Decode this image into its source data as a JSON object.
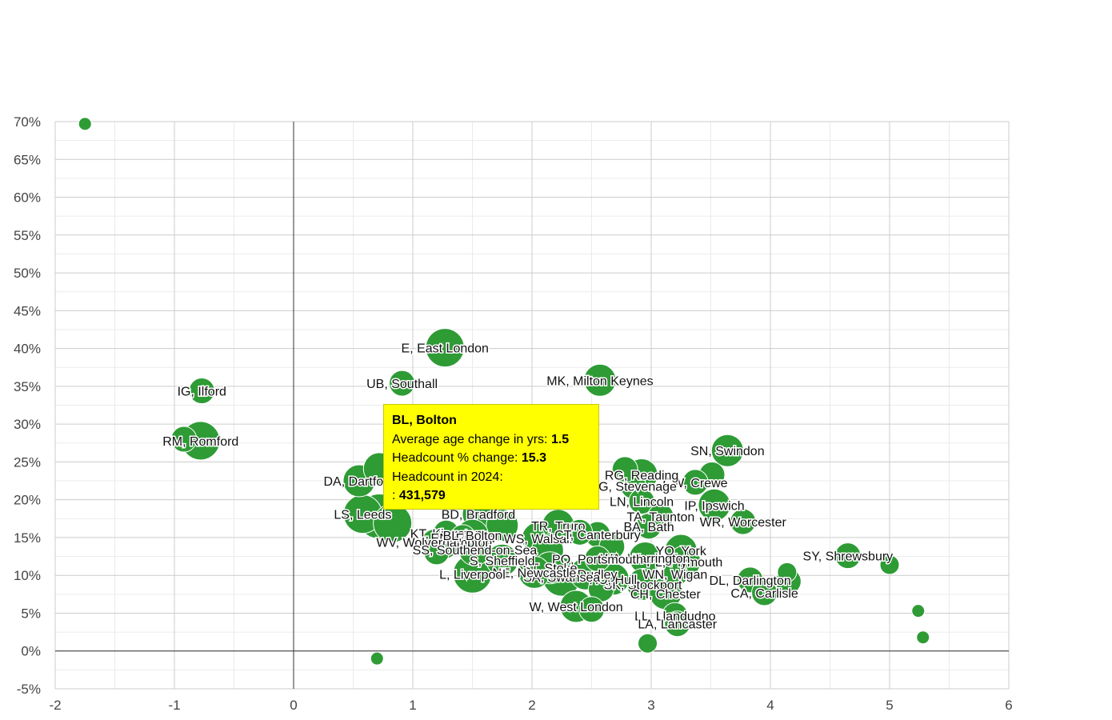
{
  "colors": {
    "bubble": "#2e9b35",
    "bubble_stroke": "#ffffff",
    "grid": "#cccccc",
    "minor_grid": "#ebebeb",
    "axis": "#333333",
    "tooltip_bg": "#ffff00"
  },
  "chart_data": {
    "type": "scatter",
    "title": "",
    "xlabel": "",
    "ylabel": "",
    "xlim": [
      -2,
      6
    ],
    "ylim": [
      -5,
      70
    ],
    "grid": true,
    "x_ticks": [
      "-2",
      "-1",
      "0",
      "1",
      "2",
      "3",
      "4",
      "5",
      "6"
    ],
    "y_ticks": [
      "-5%",
      "0%",
      "5%",
      "10%",
      "15%",
      "20%",
      "25%",
      "30%",
      "35%",
      "40%",
      "45%",
      "50%",
      "55%",
      "60%",
      "65%",
      "70%"
    ],
    "points": [
      {
        "label": "",
        "x": -1.75,
        "y": 69.7,
        "size": 1
      },
      {
        "label": "IG, Ilford",
        "x": -0.77,
        "y": 34.4,
        "size": 3
      },
      {
        "label": "",
        "x": -0.92,
        "y": 28.0,
        "size": 3
      },
      {
        "label": "RM, Romford",
        "x": -0.78,
        "y": 27.8,
        "size": 5
      },
      {
        "label": "E, East London",
        "x": 1.27,
        "y": 40.1,
        "size": 5
      },
      {
        "label": "UB, Southall",
        "x": 0.91,
        "y": 35.4,
        "size": 3
      },
      {
        "label": "MK, Milton Keynes",
        "x": 2.57,
        "y": 35.8,
        "size": 4
      },
      {
        "label": "SN, Swindon",
        "x": 3.64,
        "y": 26.5,
        "size": 4
      },
      {
        "label": "",
        "x": 3.51,
        "y": 23.3,
        "size": 3
      },
      {
        "label": "CW, Crewe",
        "x": 3.37,
        "y": 22.3,
        "size": 3
      },
      {
        "label": "RG, Reading",
        "x": 2.92,
        "y": 23.3,
        "size": 4
      },
      {
        "label": "SG, Stevenage",
        "x": 2.85,
        "y": 21.8,
        "size": 3
      },
      {
        "label": "",
        "x": 2.78,
        "y": 24.0,
        "size": 3
      },
      {
        "label": "LN, Lincoln",
        "x": 2.92,
        "y": 19.8,
        "size": 3
      },
      {
        "label": "IP, Ipswich",
        "x": 3.53,
        "y": 19.3,
        "size": 4
      },
      {
        "label": "TA, Taunton",
        "x": 3.08,
        "y": 17.8,
        "size": 3
      },
      {
        "label": "BA, Bath",
        "x": 2.98,
        "y": 16.5,
        "size": 3
      },
      {
        "label": "WR, Worcester",
        "x": 3.77,
        "y": 17.1,
        "size": 3
      },
      {
        "label": "DA, Dartford",
        "x": 0.55,
        "y": 22.5,
        "size": 4
      },
      {
        "label": "",
        "x": 0.72,
        "y": 24.1,
        "size": 4
      },
      {
        "label": "LS, Leeds",
        "x": 0.58,
        "y": 18.1,
        "size": 5
      },
      {
        "label": "",
        "x": 0.72,
        "y": 17.8,
        "size": 6
      },
      {
        "label": "",
        "x": 0.83,
        "y": 16.9,
        "size": 5
      },
      {
        "label": "BD, Bradford",
        "x": 1.55,
        "y": 18.1,
        "size": 4
      },
      {
        "label": "",
        "x": 1.75,
        "y": 16.6,
        "size": 4
      },
      {
        "label": "KT, Kingston",
        "x": 1.28,
        "y": 15.6,
        "size": 3
      },
      {
        "label": "EN, Enfield",
        "x": 1.42,
        "y": 15.0,
        "size": 3
      },
      {
        "label": "WV, Wolverhampton",
        "x": 1.18,
        "y": 14.4,
        "size": 3
      },
      {
        "label": "SS, Southend-on-Sea",
        "x": 1.52,
        "y": 13.4,
        "size": 4
      },
      {
        "label": "",
        "x": 1.27,
        "y": 13.9,
        "size": 3
      },
      {
        "label": "",
        "x": 1.2,
        "y": 13.1,
        "size": 3
      },
      {
        "label": "WS, Walsall",
        "x": 2.05,
        "y": 14.9,
        "size": 4
      },
      {
        "label": "TR, Truro",
        "x": 2.22,
        "y": 16.6,
        "size": 4
      },
      {
        "label": "CT, Canterbury",
        "x": 2.55,
        "y": 15.4,
        "size": 3
      },
      {
        "label": "",
        "x": 2.13,
        "y": 13.3,
        "size": 4
      },
      {
        "label": "",
        "x": 2.4,
        "y": 15.7,
        "size": 3
      },
      {
        "label": "",
        "x": 2.67,
        "y": 13.8,
        "size": 3
      },
      {
        "label": "YO, York",
        "x": 3.25,
        "y": 13.3,
        "size": 4
      },
      {
        "label": "PL, Plymouth",
        "x": 3.28,
        "y": 11.8,
        "size": 4
      },
      {
        "label": "WA, Warrington",
        "x": 2.95,
        "y": 12.3,
        "size": 4
      },
      {
        "label": "PO, Portsmouth",
        "x": 2.55,
        "y": 12.2,
        "size": 3
      },
      {
        "label": "WN, Wigan",
        "x": 3.2,
        "y": 10.2,
        "size": 3
      },
      {
        "label": "SK, Stockport",
        "x": 2.93,
        "y": 8.8,
        "size": 4
      },
      {
        "label": "HU, Hull",
        "x": 2.68,
        "y": 9.5,
        "size": 4
      },
      {
        "label": "",
        "x": 2.58,
        "y": 8.2,
        "size": 3
      },
      {
        "label": "DY, Dudley",
        "x": 2.45,
        "y": 10.2,
        "size": 4
      },
      {
        "label": "ST, Stoke",
        "x": 2.15,
        "y": 11.0,
        "size": 4
      },
      {
        "label": "SA, Swansea",
        "x": 2.25,
        "y": 9.8,
        "size": 5
      },
      {
        "label": "NE, Newcastle",
        "x": 2.02,
        "y": 10.4,
        "size": 4
      },
      {
        "label": "L, Liverpool",
        "x": 1.5,
        "y": 10.2,
        "size": 5
      },
      {
        "label": "S, Sheffield",
        "x": 1.75,
        "y": 12.0,
        "size": 4
      },
      {
        "label": "CH, Chester",
        "x": 3.12,
        "y": 7.6,
        "size": 4
      },
      {
        "label": "DL, Darlington",
        "x": 3.83,
        "y": 9.4,
        "size": 3
      },
      {
        "label": "CA, Carlisle",
        "x": 3.95,
        "y": 7.7,
        "size": 3
      },
      {
        "label": "",
        "x": 4.15,
        "y": 9.2,
        "size": 3
      },
      {
        "label": "",
        "x": 4.14,
        "y": 10.4,
        "size": 2
      },
      {
        "label": "SY, Shrewsbury",
        "x": 4.65,
        "y": 12.6,
        "size": 3
      },
      {
        "label": "",
        "x": 5.0,
        "y": 11.4,
        "size": 2
      },
      {
        "label": "",
        "x": 5.24,
        "y": 5.3,
        "size": 1
      },
      {
        "label": "",
        "x": 5.28,
        "y": 1.8,
        "size": 1
      },
      {
        "label": "W, West London",
        "x": 2.37,
        "y": 5.9,
        "size": 4
      },
      {
        "label": "",
        "x": 2.5,
        "y": 5.5,
        "size": 3
      },
      {
        "label": "LL, Llandudno",
        "x": 3.2,
        "y": 4.7,
        "size": 3
      },
      {
        "label": "LA, Lancaster",
        "x": 3.22,
        "y": 3.6,
        "size": 3
      },
      {
        "label": "",
        "x": 2.97,
        "y": 1.0,
        "size": 2
      },
      {
        "label": "",
        "x": 0.7,
        "y": -1.0,
        "size": 1
      },
      {
        "label": "BL, Bolton",
        "x": 1.5,
        "y": 15.3,
        "size": 4
      }
    ],
    "tooltip": {
      "title": "BL, Bolton",
      "line1_label": "Average age change in yrs:",
      "line1_value": "1.5",
      "line2_label": "Headcount % change:",
      "line2_value": "15.3",
      "line3_label": "Headcount in 2024:",
      "line4_label": ":",
      "line4_value": "431,579"
    }
  }
}
